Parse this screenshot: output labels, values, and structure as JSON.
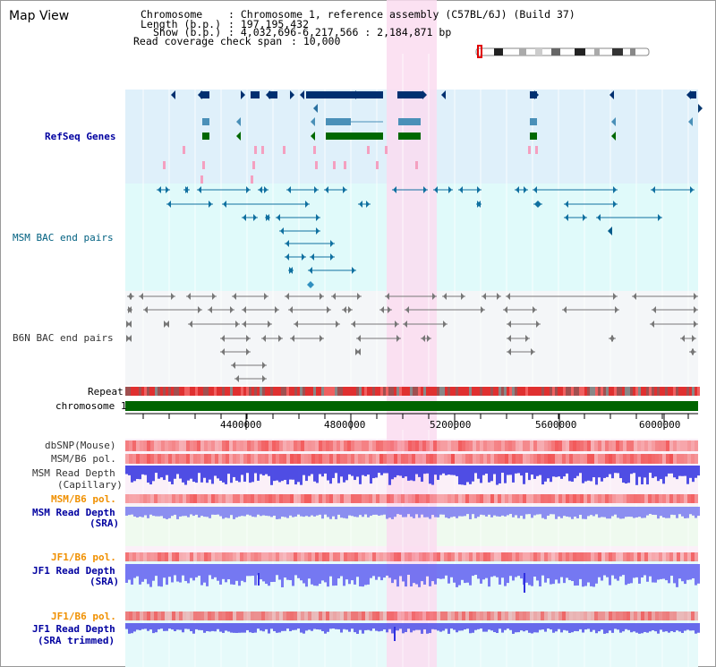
{
  "title": "Map View",
  "header": {
    "chromosome_label": "Chromosome",
    "chromosome_value": ": Chromosome 1, reference assembly (C57BL/6J) (Build 37)",
    "length_label": "Length (b.p.)",
    "length_value": ": 197,195,432",
    "show_label": "Show (b.p.)",
    "show_value": ": 4,032,696-6,217,566 : 2,184,871 bp",
    "coverage_label": "Read coverage check span",
    "coverage_value": ": 10,000"
  },
  "tracks": {
    "refseq": "RefSeq Genes",
    "msm_bac": "MSM BAC end pairs",
    "b6n_bac": "B6N BAC end pairs",
    "repeat": "Repeat",
    "chromosome": "chromosome 1",
    "dbsnp": "dbSNP(Mouse)",
    "msm_b6_pol": "MSM/B6 pol.",
    "msm_read_depth_cap_1": "MSM Read Depth",
    "msm_read_depth_cap_2": "(Capillary)",
    "msm_b6_pol_2": "MSM/B6 pol.",
    "msm_read_depth_sra_1": "MSM Read Depth",
    "msm_read_depth_sra_2": "(SRA)",
    "jf1_b6_pol": "JF1/B6 pol.",
    "jf1_read_depth_1": "JF1 Read Depth",
    "jf1_read_depth_2": "(SRA)",
    "jf1_b6_pol_2": "JF1/B6 pol.",
    "jf1_trim_1": "JF1 Read Depth",
    "jf1_trim_2": "(SRA trimmed)"
  },
  "axis": {
    "ticks": [
      "4400000",
      "4800000",
      "5200000",
      "5600000",
      "6000000"
    ]
  },
  "colors": {
    "refseq_bg": "#dff0fa",
    "bac_bg": "#e0fafa",
    "highlight": "#fadcf0",
    "chromosome": "#006400",
    "gene_navy": "#003070",
    "gene_steel": "#4a90b8",
    "gene_green": "#006800",
    "depth_blue": "#3030e0",
    "pol_red": "#f04040"
  }
}
